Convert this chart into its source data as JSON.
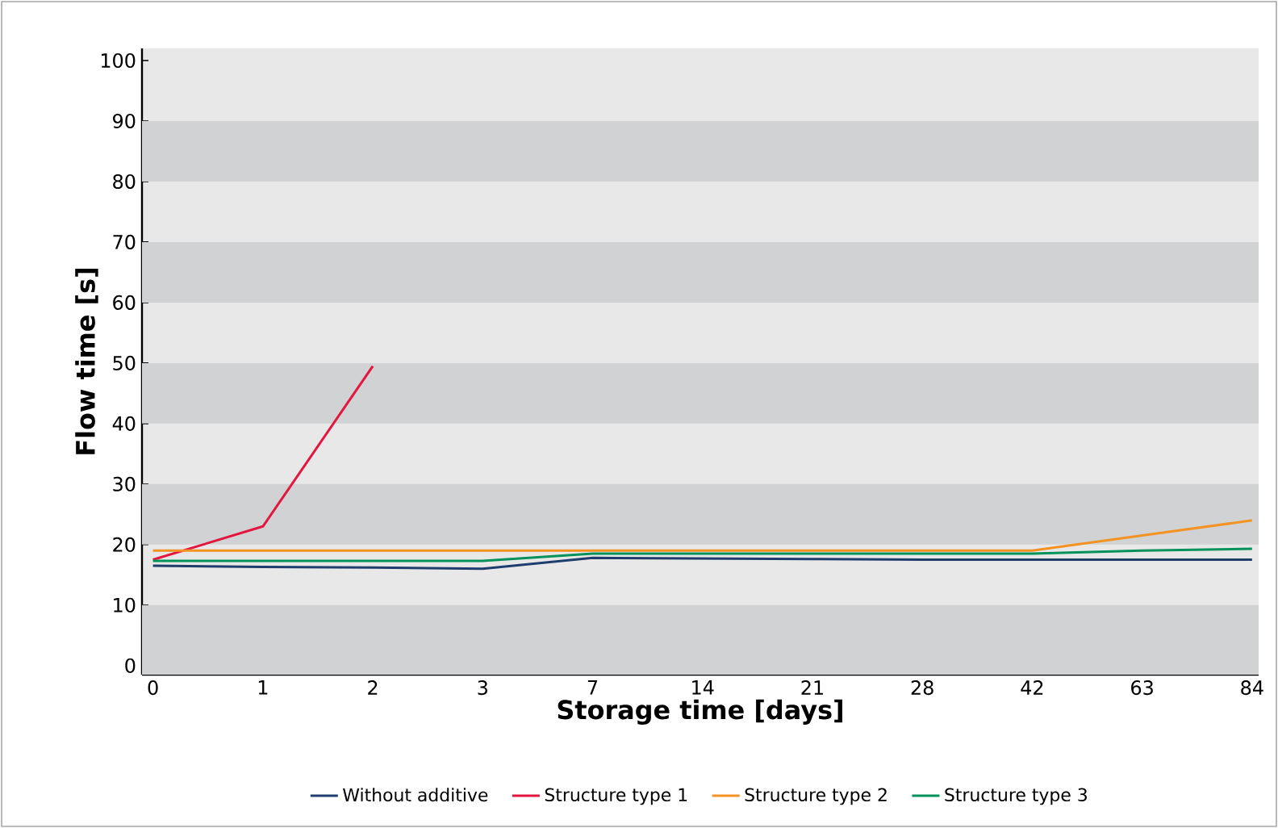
{
  "chart_data": {
    "type": "line",
    "xlabel": "Storage time [days]",
    "ylabel": "Flow time [s]",
    "categories": [
      "0",
      "1",
      "2",
      "3",
      "7",
      "14",
      "21",
      "28",
      "42",
      "63",
      "84"
    ],
    "ylim": [
      -1.5,
      102
    ],
    "yticks": [
      0,
      10,
      20,
      30,
      40,
      50,
      60,
      70,
      80,
      90,
      100
    ],
    "legend": "bottom",
    "bands": [
      {
        "axis": "y",
        "from": -1.5,
        "to": 10,
        "color": "#d1d2d4"
      },
      {
        "axis": "y",
        "from": 20,
        "to": 30,
        "color": "#d1d2d4"
      },
      {
        "axis": "y",
        "from": 40,
        "to": 50,
        "color": "#d1d2d4"
      },
      {
        "axis": "y",
        "from": 60,
        "to": 70,
        "color": "#d1d2d4"
      },
      {
        "axis": "y",
        "from": 80,
        "to": 90,
        "color": "#d1d2d4"
      }
    ],
    "marker": "none",
    "line_style": "solid",
    "series": [
      {
        "name": "Without additive",
        "color": "#1f3e6e",
        "values": [
          16.5,
          16.3,
          16.2,
          16,
          17.8,
          17.7,
          17.6,
          17.5,
          17.5,
          17.5,
          17.5
        ]
      },
      {
        "name": "Structure type 1",
        "color": "#e3173e",
        "values": [
          17.5,
          23,
          49.5,
          null,
          null,
          null,
          null,
          null,
          null,
          null,
          null
        ]
      },
      {
        "name": "Structure type 2",
        "color": "#f39323",
        "values": [
          19,
          19,
          19,
          19,
          19,
          19,
          19,
          19,
          19,
          21.5,
          24
        ]
      },
      {
        "name": "Structure type 3",
        "color": "#00925a",
        "values": [
          17.3,
          17.3,
          17.3,
          17.3,
          18.5,
          18.5,
          18.5,
          18.5,
          18.5,
          19,
          19.3
        ]
      }
    ]
  }
}
